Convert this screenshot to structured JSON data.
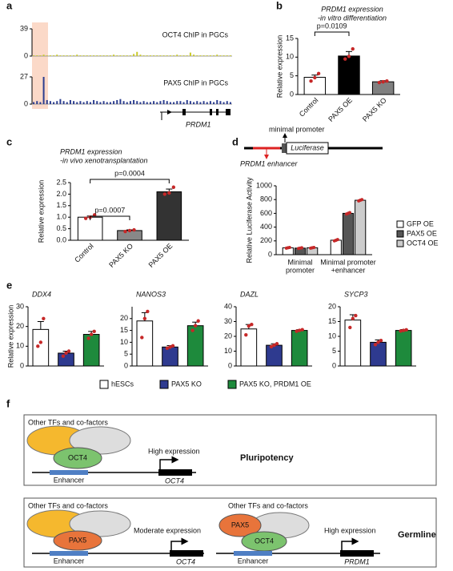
{
  "chart_data": [
    {
      "panel": "a",
      "type": "track",
      "gene": "PRDM1",
      "tracks": [
        {
          "name": "OCT4 ChIP in PGCs",
          "color": "#c9c92a",
          "ylim": [
            0,
            39
          ],
          "yticks": [
            0,
            39
          ],
          "values": [
            1,
            1,
            1,
            2,
            1,
            1,
            1,
            2,
            1,
            1,
            1,
            1,
            1,
            2,
            1,
            1,
            1,
            1,
            1,
            1,
            1,
            1,
            1,
            1,
            2,
            1,
            1,
            1,
            1,
            1,
            3,
            6,
            2,
            1,
            1,
            1,
            1,
            1,
            1,
            1,
            1,
            1,
            1,
            2,
            1,
            1,
            1,
            5,
            2,
            1,
            1,
            1,
            1,
            1,
            1,
            2,
            1,
            1,
            1,
            1
          ]
        },
        {
          "name": "PAX5 ChIP in PGCs",
          "color": "#2b3d8f",
          "ylim": [
            0,
            27
          ],
          "yticks": [
            0,
            27
          ],
          "values": [
            2,
            3,
            2,
            27,
            4,
            3,
            2,
            3,
            5,
            3,
            2,
            4,
            3,
            2,
            3,
            2,
            3,
            2,
            4,
            3,
            2,
            3,
            2,
            2,
            3,
            4,
            5,
            3,
            2,
            3,
            4,
            3,
            2,
            3,
            2,
            2,
            3,
            2,
            3,
            4,
            3,
            2,
            2,
            3,
            3,
            2,
            4,
            3,
            2,
            3,
            2,
            3,
            2,
            3,
            2,
            4,
            3,
            2,
            3,
            2
          ]
        }
      ]
    },
    {
      "panel": "b",
      "type": "bar",
      "title": [
        "PRDM1 expression",
        "-in vitro differentiation"
      ],
      "ylabel": "Relative expression",
      "categories": [
        "Control",
        "PAX5 OE",
        "PAX5 KO"
      ],
      "colors": [
        "#ffffff",
        "#000000",
        "#808080"
      ],
      "values": [
        4.6,
        10.3,
        3.4
      ],
      "errors": [
        0.6,
        1.2,
        0.3
      ],
      "points": [
        [
          3.6,
          4.5,
          5.6
        ],
        [
          9.5,
          10.2,
          12.2
        ],
        [
          3.2,
          3.4,
          3.6
        ]
      ],
      "ylim": [
        0,
        15
      ],
      "yticks": [
        0,
        5,
        10,
        15
      ],
      "comparisons": [
        "p=0.0109"
      ]
    },
    {
      "panel": "c",
      "type": "bar",
      "title": [
        "PRDM1 expression",
        "-in vivo xenotransplantation"
      ],
      "ylabel": "Relative expression",
      "categories": [
        "Control",
        "PAX5 KO",
        "PAX5 OE"
      ],
      "colors": [
        "#ffffff",
        "#888888",
        "#333333"
      ],
      "values": [
        1.0,
        0.42,
        2.1
      ],
      "errors": [
        0.05,
        0.03,
        0.12
      ],
      "points": [
        [
          0.95,
          1.0,
          1.1
        ],
        [
          0.38,
          0.42,
          0.45
        ],
        [
          2.0,
          2.05,
          2.3
        ]
      ],
      "ylim": [
        0,
        2.5
      ],
      "yticks": [
        {
          "value": 0,
          "label": "0.0"
        },
        0.5,
        {
          "value": 1,
          "label": "1.0"
        },
        1.5,
        {
          "value": 2,
          "label": "2.0"
        },
        2.5
      ],
      "comparisons": [
        "p=0.0007",
        "p=0.0004"
      ]
    },
    {
      "panel": "d",
      "type": "grouped-bar",
      "ylabel": "Relative Luciferase Activity",
      "construct": {
        "promoter": "minimal promoter",
        "reporter": "Luciferase",
        "enhancer": "PRDM1 enhancer"
      },
      "categories": [
        [
          "Minimal",
          "promoter"
        ],
        [
          "Minimal promoter",
          "+enhancer"
        ]
      ],
      "series": [
        {
          "name": "GFP OE",
          "color": "#ffffff",
          "values": [
            100,
            210
          ],
          "points": [
            [
              95,
              100,
              105
            ],
            [
              200,
              210,
              220
            ]
          ]
        },
        {
          "name": "PAX5 OE",
          "color": "#555555",
          "values": [
            95,
            600
          ],
          "points": [
            [
              90,
              95,
              100
            ],
            [
              590,
              600,
              610
            ]
          ]
        },
        {
          "name": "OCT4 OE",
          "color": "#cccccc",
          "values": [
            100,
            790
          ],
          "points": [
            [
              95,
              100,
              105
            ],
            [
              780,
              790,
              800
            ]
          ]
        }
      ],
      "ylim": [
        0,
        1000
      ],
      "yticks": [
        0,
        200,
        400,
        600,
        800,
        1000
      ]
    },
    {
      "panel": "e",
      "type": "bar",
      "title": [
        "DDX4"
      ],
      "colors": [
        "#ffffff",
        "#2e3a8f",
        "#1e8a3c"
      ],
      "values": [
        18.5,
        6.5,
        16
      ],
      "errors": [
        4,
        1,
        1.5
      ],
      "points": [
        [
          10,
          12,
          24
        ],
        [
          5,
          6.5,
          7.5
        ],
        [
          14,
          16,
          17.5
        ]
      ],
      "ylim": [
        0,
        30
      ],
      "yticks": [
        0,
        10,
        20,
        30
      ]
    },
    {
      "panel": "e",
      "type": "bar",
      "title": [
        "NANOS3"
      ],
      "colors": [
        "#ffffff",
        "#2e3a8f",
        "#1e8a3c"
      ],
      "values": [
        19,
        8,
        17
      ],
      "errors": [
        3.5,
        0.6,
        1.5
      ],
      "points": [
        [
          12,
          20,
          23
        ],
        [
          7.5,
          8,
          8.5
        ],
        [
          15,
          17,
          19
        ]
      ],
      "ylim": [
        0,
        25
      ],
      "yticks": [
        0,
        5,
        10,
        15,
        20
      ]
    },
    {
      "panel": "e",
      "type": "bar",
      "title": [
        "DAZL"
      ],
      "colors": [
        "#ffffff",
        "#2e3a8f",
        "#1e8a3c"
      ],
      "values": [
        25,
        14,
        24
      ],
      "errors": [
        3,
        1,
        0.5
      ],
      "points": [
        [
          21,
          27,
          28
        ],
        [
          13,
          14,
          15
        ],
        [
          23.5,
          24,
          24.5
        ]
      ],
      "ylim": [
        0,
        40
      ],
      "yticks": [
        0,
        10,
        20,
        30,
        40
      ]
    },
    {
      "panel": "e",
      "type": "bar",
      "title": [
        "SYCP3"
      ],
      "colors": [
        "#ffffff",
        "#2e3a8f",
        "#1e8a3c"
      ],
      "values": [
        15.5,
        8,
        12
      ],
      "errors": [
        1.8,
        0.8,
        0.3
      ],
      "points": [
        [
          13,
          16,
          17
        ],
        [
          7.2,
          8,
          8.6
        ],
        [
          11.8,
          12,
          12.2
        ]
      ],
      "ylim": [
        0,
        20
      ],
      "yticks": [
        0,
        5,
        10,
        15,
        20
      ]
    }
  ],
  "panel_e": {
    "panel": "e",
    "ylabel": "Relative expression",
    "legend": [
      "hESCs",
      "PAX5 KO",
      "PAX5 KO, PRDM1 OE"
    ]
  },
  "diagram": {
    "panel": "f",
    "pluripotency": {
      "cofactors": "Other TFs and co-factors",
      "tf": "OCT4",
      "enhancer": "Enhancer",
      "expression": "High expression",
      "gene": "OCT4",
      "label": "Pluripotency"
    },
    "germline": {
      "label": "Germline",
      "left": {
        "cofactors": "Other TFs and co-factors",
        "tf": "PAX5",
        "enhancer": "Enhancer",
        "expression": "Moderate expression",
        "gene": "OCT4"
      },
      "right": {
        "cofactors": "Other TFs and co-factors",
        "tfs": [
          "PAX5",
          "OCT4"
        ],
        "enhancer": "Enhancer",
        "expression": "High expression",
        "gene": "PRDM1"
      }
    }
  }
}
